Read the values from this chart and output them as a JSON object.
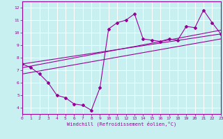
{
  "xlabel": "Windchill (Refroidissement éolien,°C)",
  "bg_color": "#c8f0f0",
  "grid_color": "#ffffff",
  "line_color": "#990099",
  "xlim": [
    0,
    23
  ],
  "ylim": [
    3.5,
    12.5
  ],
  "xticks": [
    0,
    1,
    2,
    3,
    4,
    5,
    6,
    7,
    8,
    9,
    10,
    11,
    12,
    13,
    14,
    15,
    16,
    17,
    18,
    19,
    20,
    21,
    22,
    23
  ],
  "yticks": [
    4,
    5,
    6,
    7,
    8,
    9,
    10,
    11,
    12
  ],
  "series1_x": [
    0,
    1,
    2,
    3,
    4,
    5,
    6,
    7,
    8,
    9,
    10,
    11,
    12,
    13,
    14,
    15,
    16,
    17,
    18,
    19,
    20,
    21,
    22,
    23
  ],
  "series1_y": [
    7.5,
    7.2,
    6.7,
    6.0,
    5.0,
    4.8,
    4.3,
    4.2,
    3.8,
    5.6,
    10.3,
    10.8,
    11.0,
    11.5,
    9.5,
    9.4,
    9.3,
    9.5,
    9.4,
    10.5,
    10.4,
    11.8,
    10.8,
    9.9
  ],
  "series2_x": [
    0,
    23
  ],
  "series2_y": [
    7.5,
    9.9
  ],
  "series3_x": [
    0,
    23
  ],
  "series3_y": [
    7.2,
    10.2
  ],
  "series4_x": [
    0,
    23
  ],
  "series4_y": [
    6.7,
    9.5
  ]
}
